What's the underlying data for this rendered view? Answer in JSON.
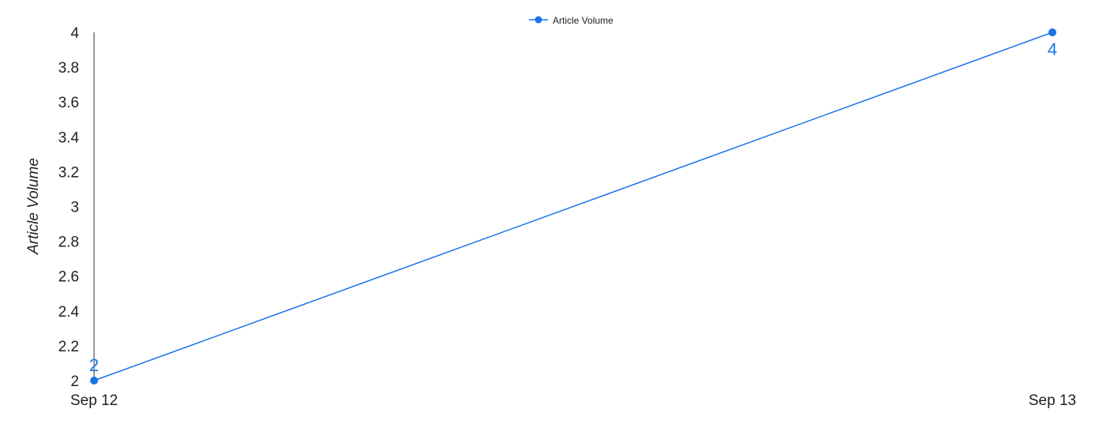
{
  "chart_data": {
    "type": "line",
    "categories": [
      "Sep 12",
      "Sep 13"
    ],
    "series": [
      {
        "name": "Article Volume",
        "values": [
          2,
          4
        ],
        "color": "#1a73e8"
      }
    ],
    "xlabel": "",
    "ylabel": "Article Volume",
    "ylim": [
      2,
      4
    ],
    "yticks": [
      "2",
      "2.2",
      "2.4",
      "2.6",
      "2.8",
      "3",
      "3.2",
      "3.4",
      "3.6",
      "3.8",
      "4"
    ],
    "data_labels": [
      "2",
      "4"
    ],
    "legend": {
      "position": "top-center",
      "entries": [
        "Article Volume"
      ]
    },
    "grid": false
  }
}
